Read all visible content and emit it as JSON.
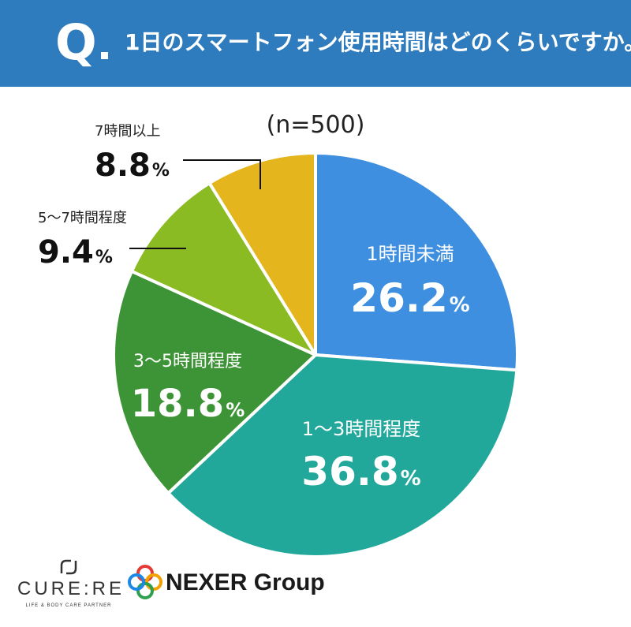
{
  "header": {
    "q_mark": "Q",
    "question": "1日のスマートフォン使用時間はどのくらいですか。",
    "background": "#2e7bbd"
  },
  "chart_data": {
    "type": "pie",
    "sample_note": "(n=500)",
    "slices": [
      {
        "label": "1時間未満",
        "value": 26.2,
        "display": "26.2",
        "unit": "%",
        "color": "#3e8fe0"
      },
      {
        "label": "1～3時間程度",
        "value": 36.8,
        "display": "36.8",
        "unit": "%",
        "color": "#22a89b"
      },
      {
        "label": "3～5時間程度",
        "value": 18.8,
        "display": "18.8",
        "unit": "%",
        "color": "#3d9436"
      },
      {
        "label": "5～7時間程度",
        "value": 9.4,
        "display": "9.4",
        "unit": "%",
        "color": "#8bbb22"
      },
      {
        "label": "7時間以上",
        "value": 8.8,
        "display": "8.8",
        "unit": "%",
        "color": "#e4b51d"
      }
    ]
  },
  "footer": {
    "cure_logo_text": "CURE:RE",
    "cure_logo_sub": "LIFE & BODY CARE PARTNER",
    "nexer_logo_text": "NEXER Group",
    "nexer_colors": [
      "#e53935",
      "#f2a100",
      "#2e9e4f",
      "#1e88e5"
    ]
  }
}
